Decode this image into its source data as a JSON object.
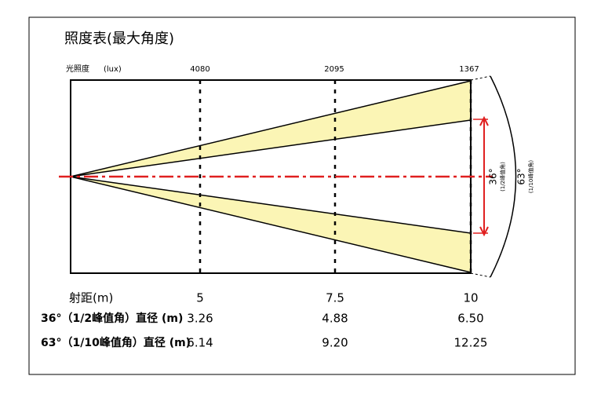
{
  "title": "照度表(最大角度)",
  "illuminance": {
    "label": "光照度",
    "unit": "(lux)",
    "values": [
      "4080",
      "2095",
      "1367"
    ]
  },
  "angles": {
    "half": {
      "angle": "36°",
      "note": "(1/2峰值角)"
    },
    "tenth": {
      "angle": "63°",
      "note": "(1/10峰值角)"
    }
  },
  "table": {
    "rows": [
      [
        "射距(m)",
        "5",
        "7.5",
        "10"
      ],
      [
        "36°（1/2峰值角）直径 (m)",
        "3.26",
        "4.88",
        "6.50"
      ],
      [
        "63°（1/10峰值角）直径 (m)",
        "6.14",
        "9.20",
        "12.25"
      ]
    ]
  }
}
